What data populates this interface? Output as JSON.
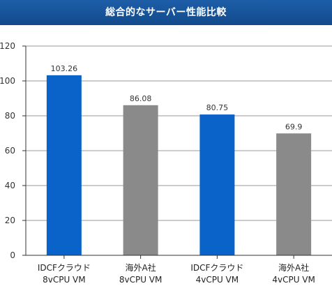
{
  "title": "総合的なサーバー性能比較",
  "colors": {
    "title_bg": "#1a56a0",
    "title_text": "#ffffff",
    "grid": "#999999",
    "axis": "#333333"
  },
  "chart_data": {
    "type": "bar",
    "title": "総合的なサーバー性能比較",
    "categories": [
      [
        "IDCFクラウド",
        "8vCPU VM"
      ],
      [
        "海外A社",
        "8vCPU VM"
      ],
      [
        "IDCFクラウド",
        "4vCPU VM"
      ],
      [
        "海外A社",
        "4vCPU VM"
      ]
    ],
    "values": [
      103.26,
      86.08,
      80.75,
      69.9
    ],
    "value_labels": [
      "103.26",
      "86.08",
      "80.75",
      "69.9"
    ],
    "bar_colors": [
      "#0a63c9",
      "#8a8a8a",
      "#0a63c9",
      "#8a8a8a"
    ],
    "ylim": [
      0,
      120
    ],
    "yticks": [
      0,
      20,
      40,
      60,
      80,
      100,
      120
    ],
    "xlabel": "",
    "ylabel": "",
    "grid": true,
    "legend": "none"
  }
}
